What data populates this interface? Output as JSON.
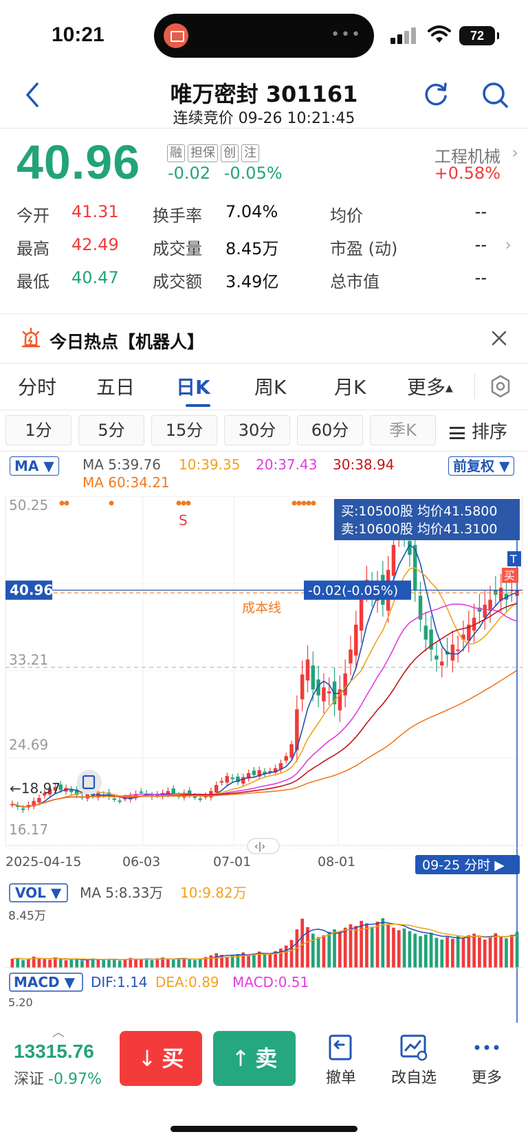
{
  "status": {
    "time": "10:21",
    "battery": "72"
  },
  "header": {
    "title": "唯万密封 301161",
    "subtitle": "连续竞价 09-26 10:21:45"
  },
  "quote": {
    "price": "40.96",
    "tags": [
      "融",
      "担保",
      "创",
      "注"
    ],
    "change": "-0.02",
    "change_pct": "-0.05%",
    "sector": "工程机械",
    "sector_pct": "+0.58%"
  },
  "stats": [
    [
      {
        "label": "今开",
        "value": "41.31",
        "color": "red"
      },
      {
        "label": "换手率",
        "value": "7.04%"
      },
      {
        "label": "均价",
        "value": "--"
      }
    ],
    [
      {
        "label": "最高",
        "value": "42.49",
        "color": "red"
      },
      {
        "label": "成交量",
        "value": "8.45万"
      },
      {
        "label": "市盈 (动)",
        "value": "--"
      }
    ],
    [
      {
        "label": "最低",
        "value": "40.47",
        "color": "green"
      },
      {
        "label": "成交额",
        "value": "3.49亿"
      },
      {
        "label": "总市值",
        "value": "--"
      }
    ]
  ],
  "hot": {
    "text": "今日热点【机器人】"
  },
  "tabs": [
    "分时",
    "五日",
    "日K",
    "周K",
    "月K",
    "更多"
  ],
  "subtabs": [
    "1分",
    "5分",
    "15分",
    "30分",
    "60分",
    "季K"
  ],
  "sort_label": "排序",
  "ma_bar": {
    "selector": "MA",
    "ma5": "MA 5:39.76",
    "ma10": "10:39.35",
    "ma20": "20:37.43",
    "ma30": "30:38.94",
    "ma60": "MA 60:34.21",
    "adjust": "前复权"
  },
  "colors": {
    "up": "#ef3b3b",
    "down": "#22a37a",
    "accent": "#2257b6",
    "ma5": "#1f4fb5",
    "ma10": "#f2a11c",
    "ma20": "#e23ce0",
    "ma30": "#c21717",
    "ma60": "#f07a22"
  },
  "chart_data": {
    "type": "candlestick",
    "y_labels": [
      "50.25",
      "33.21",
      "24.69",
      "16.17"
    ],
    "price_line": "40.96",
    "price_change_label": "-0.02(-0.05%)",
    "cost_line_label": "成本线",
    "low_label": "18.97",
    "x_labels": [
      "2025-04-15",
      "06-03",
      "07-01",
      "08-01"
    ],
    "x_nav_label": "09-25 分时",
    "signal_label": "S",
    "order_box": [
      "买:10500股 均价41.5800",
      "卖:10600股 均价41.3100"
    ],
    "trade_marks": [
      "T",
      "买"
    ],
    "vol": {
      "selector": "VOL",
      "ma5": "MA 5:8.33万",
      "ma10": "10:9.82万",
      "max_label": "8.45万"
    },
    "macd": {
      "selector": "MACD",
      "dif": "DIF:1.14",
      "dea": "DEA:0.89",
      "macd": "MACD:0.51",
      "axis_label": "5.20"
    },
    "closes": [
      19.5,
      19.2,
      18.9,
      19.4,
      19.8,
      20.1,
      20.6,
      21.0,
      21.2,
      20.9,
      21.1,
      20.7,
      20.4,
      20.2,
      20.5,
      20.3,
      20.6,
      20.4,
      20.2,
      20.0,
      19.8,
      20.1,
      20.3,
      20.5,
      20.7,
      20.5,
      20.2,
      20.4,
      20.6,
      20.8,
      20.5,
      20.3,
      20.6,
      20.4,
      20.2,
      20.0,
      20.3,
      20.8,
      21.4,
      21.8,
      22.3,
      22.0,
      21.7,
      22.2,
      22.6,
      22.4,
      22.9,
      22.5,
      22.8,
      23.1,
      23.6,
      24.3,
      25.5,
      29.0,
      32.5,
      34.0,
      31.0,
      30.4,
      31.2,
      30.8,
      29.5,
      31.0,
      32.6,
      35.0,
      37.5,
      40.0,
      42.0,
      40.5,
      41.5,
      39.5,
      43.0,
      45.5,
      48.0,
      46.5,
      44.5,
      41.0,
      38.0,
      36.0,
      35.0,
      34.0,
      33.8,
      34.5,
      35.5,
      35.0,
      36.5,
      37.5,
      38.2,
      38.8,
      39.5,
      40.0,
      40.5,
      41.2,
      40.0,
      41.0,
      40.96
    ],
    "volumes": [
      2.1,
      2.3,
      1.8,
      2.0,
      2.6,
      2.2,
      2.0,
      1.9,
      2.4,
      2.1,
      1.8,
      1.9,
      2.0,
      1.7,
      1.9,
      2.2,
      2.0,
      1.8,
      2.1,
      1.9,
      1.7,
      2.0,
      2.3,
      2.1,
      1.9,
      2.0,
      1.8,
      2.2,
      2.4,
      2.0,
      1.9,
      2.1,
      2.3,
      2.0,
      1.8,
      2.0,
      2.5,
      2.9,
      3.4,
      3.0,
      2.6,
      2.8,
      3.2,
      3.6,
      3.0,
      3.3,
      3.8,
      3.1,
      3.4,
      3.9,
      4.5,
      5.2,
      6.5,
      9.0,
      11.5,
      9.5,
      8.0,
      7.2,
      7.6,
      8.4,
      9.0,
      8.6,
      9.4,
      10.2,
      9.8,
      11.0,
      10.4,
      9.6,
      10.8,
      11.6,
      10.0,
      9.4,
      8.8,
      9.2,
      8.6,
      8.0,
      7.4,
      7.8,
      8.2,
      7.0,
      6.6,
      7.2,
      6.8,
      7.4,
      6.9,
      7.6,
      8.0,
      7.1,
      6.6,
      7.3,
      8.1,
      7.4,
      6.9,
      7.7,
      8.45
    ]
  },
  "bottom": {
    "index_value": "13315.76",
    "index_name": "深证",
    "index_change": "-0.97%",
    "buy": "买",
    "sell": "卖",
    "tools": [
      "撤单",
      "改自选",
      "更多"
    ]
  }
}
